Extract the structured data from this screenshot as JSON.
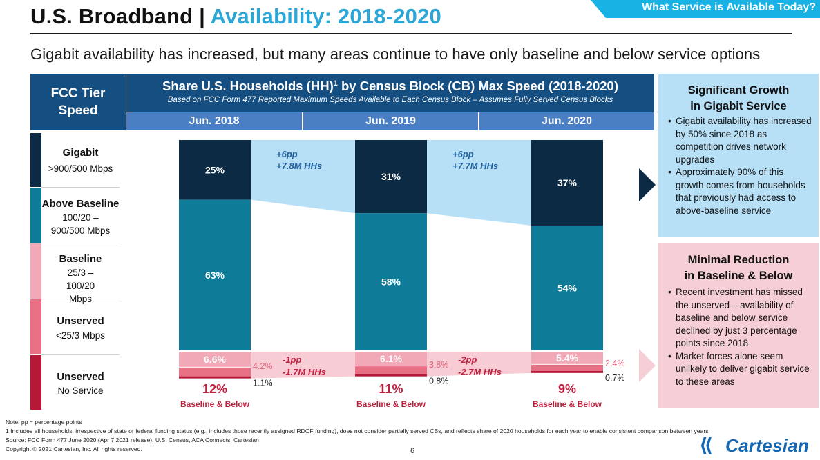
{
  "header": {
    "title_part1": "U.S. Broadband | ",
    "title_part2": "Availability: 2018-2020",
    "corner_tab": "What Service is Available Today?",
    "subtitle": "Gigabit availability has increased, but many areas continue to have only baseline and below service options"
  },
  "table_header": {
    "fcc_tier_line1": "FCC Tier",
    "fcc_tier_line2": "Speed",
    "share_title": "Share U.S. Households (HH)",
    "share_title_sup": "1",
    "share_title_rest": " by Census Block (CB) Max Speed (2018-2020)",
    "share_subtitle": "Based on FCC Form 477 Reported Maximum Speeds Available to Each Census Block – Assumes Fully Served Census Blocks",
    "years": [
      "Jun. 2018",
      "Jun. 2019",
      "Jun. 2020"
    ]
  },
  "tiers": [
    {
      "name": "Gigabit",
      "range": ">900/500 Mbps",
      "color": "#0c2a44"
    },
    {
      "name": "Above Baseline",
      "range": "100/20 – 900/500 Mbps",
      "color": "#0e7c99"
    },
    {
      "name": "Baseline",
      "range": "25/3 – 100/20 Mbps",
      "color": "#f2a9b7"
    },
    {
      "name": "Unserved",
      "range": "<25/3 Mbps",
      "color": "#e87085"
    },
    {
      "name": "Unserved",
      "range": "No Service",
      "color": "#b51937"
    }
  ],
  "chart_data": {
    "type": "bar",
    "stacked": true,
    "categories": [
      "Jun. 2018",
      "Jun. 2019",
      "Jun. 2020"
    ],
    "series": [
      {
        "name": "Gigabit",
        "values": [
          25,
          31,
          37
        ],
        "labels": [
          "25%",
          "31%",
          "37%"
        ],
        "color": "#0c2a44"
      },
      {
        "name": "Above Baseline",
        "values": [
          63,
          58,
          54
        ],
        "labels": [
          "63%",
          "58%",
          "54%"
        ],
        "color": "#0e7c99"
      },
      {
        "name": "Baseline",
        "values": [
          6.6,
          6.1,
          5.4
        ],
        "labels": [
          "6.6%",
          "6.1%",
          "5.4%"
        ],
        "color": "#f2a9b7"
      },
      {
        "name": "Unserved (<25/3 Mbps)",
        "values": [
          4.2,
          3.8,
          2.4
        ],
        "labels": [
          "4.2%",
          "3.8%",
          "2.4%"
        ],
        "color": "#e87085"
      },
      {
        "name": "Unserved (No Service)",
        "values": [
          1.1,
          0.8,
          0.7
        ],
        "labels": [
          "1.1%",
          "0.8%",
          "0.7%"
        ],
        "color": "#b51937"
      }
    ],
    "totals_baseline_below": {
      "values": [
        "12%",
        "11%",
        "9%"
      ],
      "label": "Baseline & Below"
    },
    "gigabit_change_annotations": [
      {
        "pp": "+6pp",
        "hh": "+7.8M HHs"
      },
      {
        "pp": "+6pp",
        "hh": "+7.7M HHs"
      }
    ],
    "below_change_annotations": [
      {
        "pp": "-1pp",
        "hh": "-1.7M HHs"
      },
      {
        "pp": "-2pp",
        "hh": "-2.7M HHs"
      }
    ],
    "ylim": [
      0,
      100
    ],
    "colors": {
      "growth_band": "#b7dff6",
      "decline_band": "#f8ccd4",
      "label_pink": "#e0667c",
      "label_red": "#c0203f",
      "label_blue": "#1f5f9e"
    }
  },
  "panels": {
    "growth": {
      "title_line1": "Significant Growth",
      "title_line2": "in Gigabit Service",
      "bullets": [
        "Gigabit availability has increased by 50% since 2018 as competition drives network upgrades",
        "Approximately 90% of this growth comes from households that previously had access to above-baseline service"
      ]
    },
    "reduction": {
      "title_line1": "Minimal Reduction",
      "title_line2": "in Baseline & Below",
      "bullets": [
        "Recent investment has missed the unserved – availability of baseline and below service declined by just 3 percentage points since 2018",
        "Market forces alone seem unlikely to deliver gigabit service to these areas"
      ]
    }
  },
  "footer": {
    "note1": "Note: pp = percentage points",
    "note2": "1 Includes all households, irrespective of state or federal funding status (e.g., includes those recently assigned RDOF funding), does not consider partially served CBs, and reflects share of 2020 households for each year to enable consistent comparison between years",
    "source": "Source: FCC Form 477 June 2020 (Apr 7 2021 release), U.S. Census, ACA Connects, Cartesian",
    "copyright": "Copyright © 2021 Cartesian, Inc. All rights reserved.",
    "page_number": "6",
    "logo_text": "Cartesian"
  }
}
